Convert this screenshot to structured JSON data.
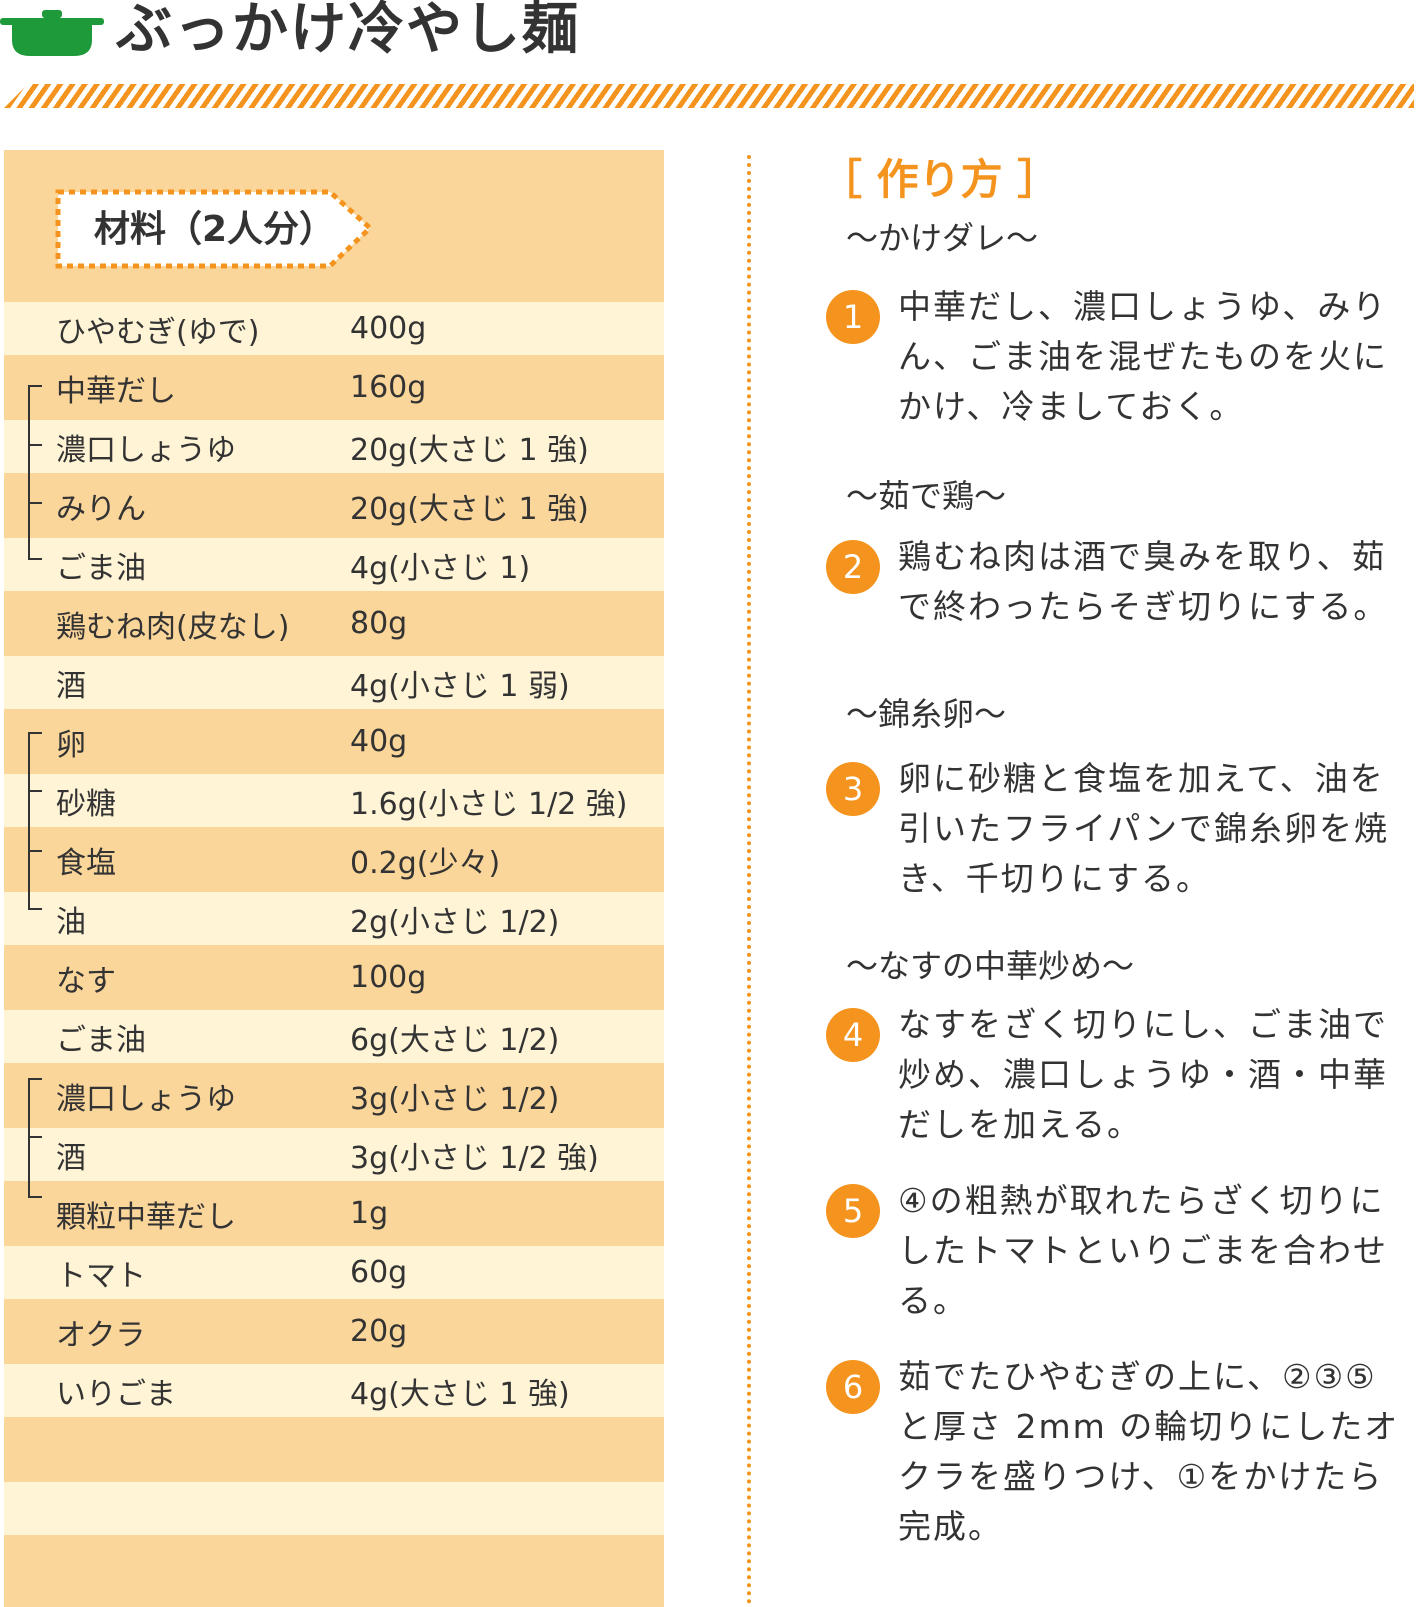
{
  "header": {
    "title": "ぶっかけ冷やし麺"
  },
  "colors": {
    "accent": "#f4941e",
    "pot": "#1e9a3a",
    "row_dark": "#fbd69a",
    "row_light": "#fff4d6"
  },
  "ingredients": {
    "heading": "材料（2人分）",
    "rows": [
      {
        "name": "ひやむぎ(ゆで)",
        "amount": "400g"
      },
      {
        "name": "中華だし",
        "amount": "160g"
      },
      {
        "name": "濃口しょうゆ",
        "amount": "20g(大さじ 1 強)"
      },
      {
        "name": "みりん",
        "amount": "20g(大さじ 1 強)"
      },
      {
        "name": "ごま油",
        "amount": "4g(小さじ 1)"
      },
      {
        "name": "鶏むね肉(皮なし)",
        "amount": "80g"
      },
      {
        "name": "酒",
        "amount": "4g(小さじ 1 弱)"
      },
      {
        "name": "卵",
        "amount": "40g"
      },
      {
        "name": "砂糖",
        "amount": "1.6g(小さじ 1/2 強)"
      },
      {
        "name": "食塩",
        "amount": "0.2g(少々)"
      },
      {
        "name": "油",
        "amount": "2g(小さじ 1/2)"
      },
      {
        "name": "なす",
        "amount": "100g"
      },
      {
        "name": "ごま油",
        "amount": "6g(大さじ 1/2)"
      },
      {
        "name": "濃口しょうゆ",
        "amount": "3g(小さじ 1/2)"
      },
      {
        "name": "酒",
        "amount": "3g(小さじ 1/2 強)"
      },
      {
        "name": "顆粒中華だし",
        "amount": "1g"
      },
      {
        "name": "トマト",
        "amount": "60g"
      },
      {
        "name": "オクラ",
        "amount": "20g"
      },
      {
        "name": "いりごま",
        "amount": "4g(大さじ 1 強)"
      },
      {
        "name": "",
        "amount": ""
      },
      {
        "name": "",
        "amount": ""
      },
      {
        "name": "",
        "amount": ""
      }
    ]
  },
  "method": {
    "title": "［ 作り方 ］",
    "sections": [
      {
        "subtitle": "〜かけダレ〜",
        "steps": [
          {
            "num": "1",
            "text": "中華だし、濃口しょうゆ、みりん、ごま油を混ぜたものを火にかけ、冷ましておく。"
          }
        ]
      },
      {
        "subtitle": "〜茹で鶏〜",
        "steps": [
          {
            "num": "2",
            "text": "鶏むね肉は酒で臭みを取り、茹で終わったらそぎ切りにする。"
          }
        ]
      },
      {
        "subtitle": "〜錦糸卵〜",
        "steps": [
          {
            "num": "3",
            "text": "卵に砂糖と食塩を加えて、油を引いたフライパンで錦糸卵を焼き、千切りにする。"
          }
        ]
      },
      {
        "subtitle": "〜なすの中華炒め〜",
        "steps": [
          {
            "num": "4",
            "text": "なすをざく切りにし、ごま油で炒め、濃口しょうゆ・酒・中華だしを加える。"
          },
          {
            "num": "5",
            "text": "④の粗熱が取れたらざく切りにしたトマトといりごまを合わせる。"
          },
          {
            "num": "6",
            "text": "茹でたひやむぎの上に、②③⑤と厚さ 2mm の輪切りにしたオクラを盛りつけ、①をかけたら完成。"
          }
        ]
      }
    ]
  }
}
